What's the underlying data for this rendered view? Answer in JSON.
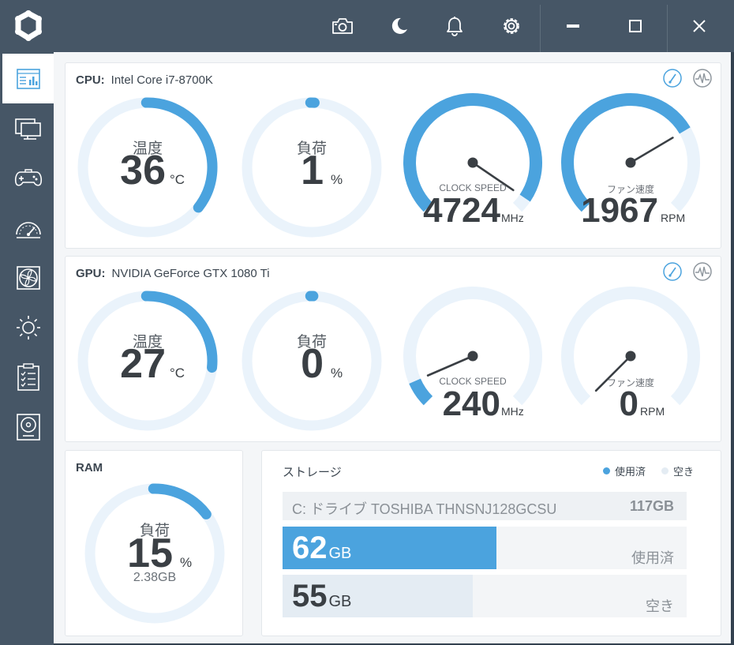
{
  "colors": {
    "accent": "#4ba3de",
    "track": "#eaf3fb",
    "titlebar": "#465666",
    "free_fill": "#e4ecf3"
  },
  "titlebar": {
    "icons": [
      "logo-icon",
      "camera-icon",
      "moon-icon",
      "bell-icon",
      "gear-icon"
    ],
    "window_controls": [
      "minimize-icon",
      "maximize-icon",
      "close-icon"
    ]
  },
  "sidebar": {
    "items": [
      {
        "icon": "dashboard-icon",
        "active": true
      },
      {
        "icon": "monitor-icon",
        "active": false
      },
      {
        "icon": "gamepad-icon",
        "active": false
      },
      {
        "icon": "speedometer-icon",
        "active": false
      },
      {
        "icon": "fan-icon",
        "active": false
      },
      {
        "icon": "brightness-icon",
        "active": false
      },
      {
        "icon": "checklist-icon",
        "active": false
      },
      {
        "icon": "disk-icon",
        "active": false
      }
    ]
  },
  "cpu": {
    "label": "CPU:",
    "name": "Intel Core i7-8700K",
    "temp": {
      "label": "温度",
      "value": "36",
      "unit": "°C",
      "fraction": 0.36
    },
    "load": {
      "label": "負荷",
      "value": "1",
      "unit": "%",
      "fraction": 0.01
    },
    "clock": {
      "label": "CLOCK SPEED",
      "value": "4724",
      "unit": "MHz",
      "fraction": 0.96
    },
    "fan": {
      "label": "ファン速度",
      "value": "1967",
      "unit": "RPM",
      "fraction": 0.72
    }
  },
  "gpu": {
    "label": "GPU:",
    "name": "NVIDIA GeForce GTX 1080 Ti",
    "temp": {
      "label": "温度",
      "value": "27",
      "unit": "°C",
      "fraction": 0.27
    },
    "load": {
      "label": "負荷",
      "value": "0",
      "unit": "%",
      "fraction": 0.0
    },
    "clock": {
      "label": "CLOCK SPEED",
      "value": "240",
      "unit": "MHz",
      "fraction": 0.08
    },
    "fan": {
      "label": "ファン速度",
      "value": "0",
      "unit": "RPM",
      "fraction": 0.0
    }
  },
  "ram": {
    "label": "RAM",
    "load": {
      "label": "負荷",
      "value": "15",
      "unit": "%",
      "fraction": 0.15,
      "sub": "2.38GB"
    }
  },
  "storage": {
    "title": "ストレージ",
    "legend_used": "使用済",
    "legend_free": "空き",
    "drive_name": "C: ドライブ TOSHIBA THNSNJ128GCSU",
    "drive_size": "117GB",
    "used": {
      "value": "62",
      "unit": "GB",
      "label": "使用済",
      "fraction": 0.53
    },
    "free": {
      "value": "55",
      "unit": "GB",
      "label": "空き",
      "fraction": 0.47
    }
  }
}
